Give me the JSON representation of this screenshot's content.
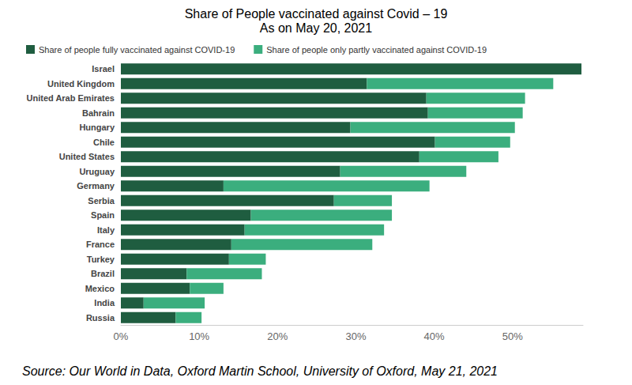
{
  "chart_data": {
    "type": "bar",
    "orientation": "horizontal",
    "stacked": true,
    "title": "Share of People vaccinated against Covid – 19",
    "subtitle": "As on May 20, 2021",
    "annotations": [
      "Source: Our World in Data, Oxford Martin School, University of Oxford, May 21, 2021"
    ],
    "categories": [
      "Israel",
      "United Kingdom",
      "United Arab Emirates",
      "Bahrain",
      "Hungary",
      "Chile",
      "United States",
      "Uruguay",
      "Germany",
      "Serbia",
      "Spain",
      "Italy",
      "France",
      "Turkey",
      "Brazil",
      "Mexico",
      "India",
      "Russia"
    ],
    "series": [
      {
        "name": "Share of people fully vaccinated against COVID-19",
        "color": "#1f5d40",
        "values": [
          58.8,
          31.4,
          39.0,
          39.2,
          29.3,
          40.1,
          38.1,
          28.0,
          13.1,
          27.2,
          16.6,
          15.8,
          14.1,
          13.8,
          8.4,
          8.8,
          2.9,
          7.0
        ]
      },
      {
        "name": "Share of people only partly vaccinated against COVID-19",
        "color": "#3bae7e",
        "values": [
          0,
          23.8,
          12.6,
          12.1,
          21.0,
          9.6,
          10.1,
          16.1,
          26.3,
          7.4,
          18.0,
          17.8,
          18.0,
          4.7,
          9.6,
          4.3,
          7.8,
          3.3
        ]
      }
    ],
    "xlim": [
      0,
      59
    ],
    "xticks": [
      {
        "value": 0,
        "label": "0%"
      },
      {
        "value": 10,
        "label": "10%"
      },
      {
        "value": 20,
        "label": "20%"
      },
      {
        "value": 30,
        "label": "30%"
      },
      {
        "value": 40,
        "label": "40%"
      },
      {
        "value": 50,
        "label": "50%"
      }
    ],
    "grid": false,
    "legend": "top-left"
  }
}
